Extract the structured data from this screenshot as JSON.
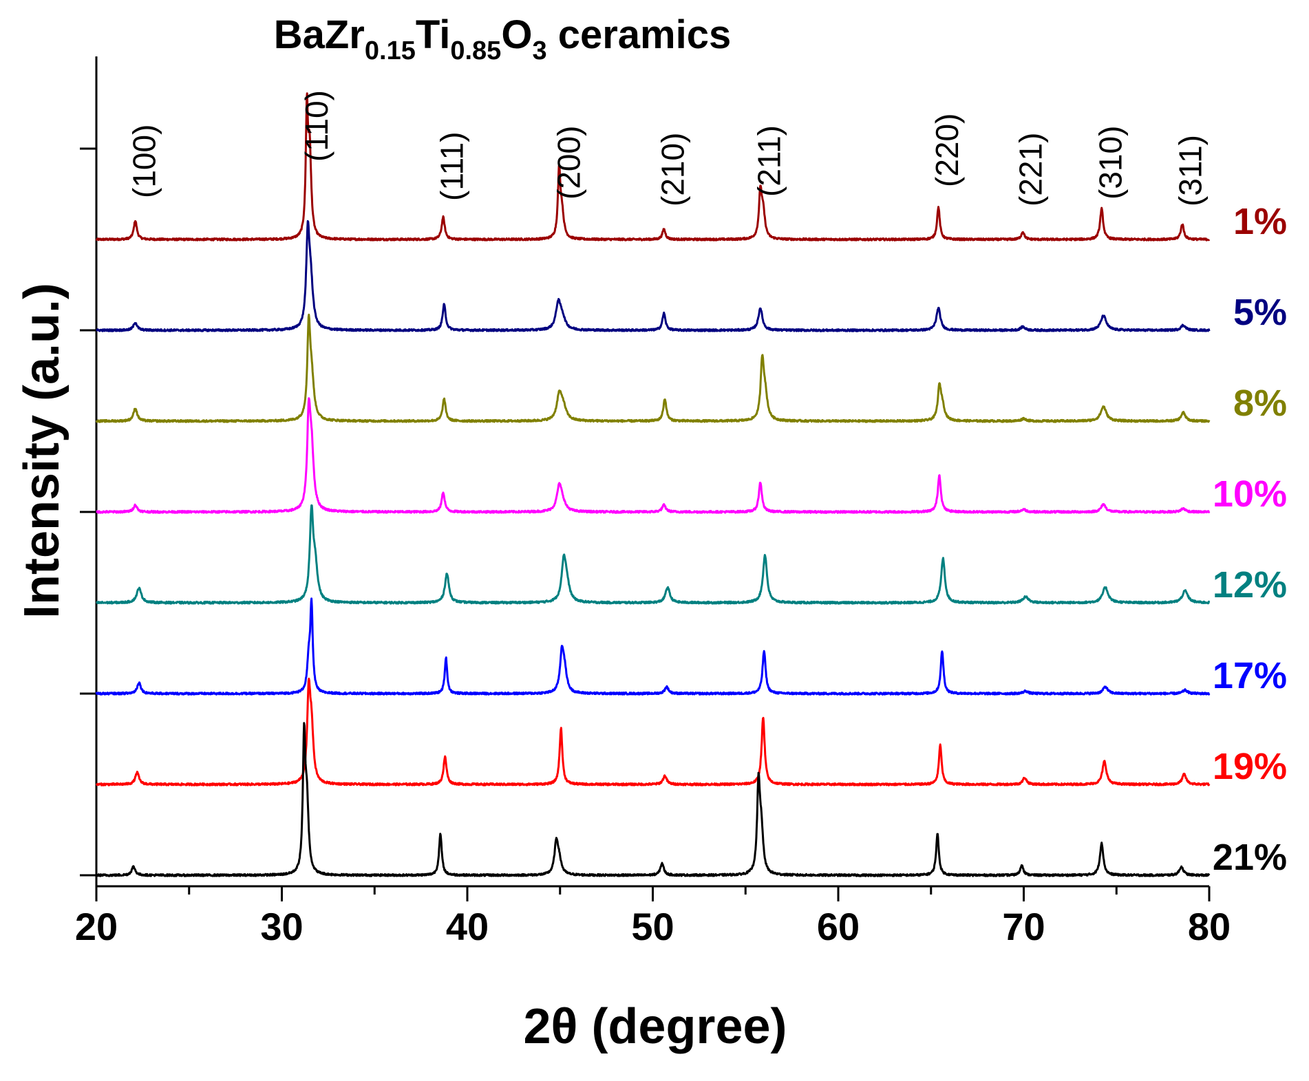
{
  "chart_data": {
    "type": "line",
    "title_main": "BaZr",
    "title_sub1": "0.15",
    "title_mid": "Ti",
    "title_sub2": "0.85",
    "title_o": "O",
    "title_sub3": "3",
    "title_end": " ceramics",
    "xlabel": "2θ (degree)",
    "ylabel": "Intensity (a.u.)",
    "xlim": [
      20,
      80
    ],
    "xticks": [
      20,
      30,
      40,
      50,
      60,
      70,
      80
    ],
    "xtick_labels": [
      "20",
      "30",
      "40",
      "50",
      "60",
      "70",
      "80"
    ],
    "peak_labels": [
      {
        "text": "(100)",
        "x": 22.2
      },
      {
        "text": "(110)",
        "x": 31.5
      },
      {
        "text": "(111)",
        "x": 38.8
      },
      {
        "text": "(200)",
        "x": 45.1
      },
      {
        "text": "(210)",
        "x": 50.7
      },
      {
        "text": "(211)",
        "x": 55.9
      },
      {
        "text": "(220)",
        "x": 65.5
      },
      {
        "text": "(221)",
        "x": 70.0
      },
      {
        "text": "(310)",
        "x": 74.3
      },
      {
        "text": "(311)",
        "x": 78.6
      }
    ],
    "series": [
      {
        "name": "1%",
        "color": "#9B0000",
        "peaks": [
          [
            22.1,
            22
          ],
          [
            31.35,
            140
          ],
          [
            31.5,
            100
          ],
          [
            38.7,
            26
          ],
          [
            44.95,
            76
          ],
          [
            45.1,
            30
          ],
          [
            50.6,
            12
          ],
          [
            55.8,
            52
          ],
          [
            55.95,
            30
          ],
          [
            65.4,
            38
          ],
          [
            69.95,
            9
          ],
          [
            74.2,
            36
          ],
          [
            78.55,
            18
          ]
        ],
        "widths": [
          0.1,
          0.07,
          0.1,
          0.1,
          0.08,
          0.12,
          0.1,
          0.09,
          0.12,
          0.09,
          0.1,
          0.1,
          0.1
        ]
      },
      {
        "name": "5%",
        "color": "#000080",
        "peaks": [
          [
            22.1,
            9
          ],
          [
            31.4,
            100
          ],
          [
            31.55,
            55
          ],
          [
            38.75,
            30
          ],
          [
            44.9,
            28
          ],
          [
            45.1,
            15
          ],
          [
            50.6,
            20
          ],
          [
            55.8,
            26
          ],
          [
            65.4,
            26
          ],
          [
            69.95,
            4
          ],
          [
            74.3,
            17
          ],
          [
            78.6,
            6
          ]
        ],
        "widths": [
          0.12,
          0.1,
          0.15,
          0.1,
          0.15,
          0.2,
          0.1,
          0.13,
          0.13,
          0.15,
          0.18,
          0.15
        ]
      },
      {
        "name": "8%",
        "color": "#808000",
        "peaks": [
          [
            22.1,
            15
          ],
          [
            31.45,
            100
          ],
          [
            31.6,
            50
          ],
          [
            38.75,
            26
          ],
          [
            44.95,
            26
          ],
          [
            45.15,
            18
          ],
          [
            50.65,
            26
          ],
          [
            55.9,
            63
          ],
          [
            56.05,
            30
          ],
          [
            65.45,
            35
          ],
          [
            65.6,
            18
          ],
          [
            70.0,
            3
          ],
          [
            74.3,
            17
          ],
          [
            78.6,
            10
          ]
        ],
        "widths": [
          0.12,
          0.09,
          0.15,
          0.1,
          0.15,
          0.2,
          0.1,
          0.1,
          0.15,
          0.1,
          0.15,
          0.15,
          0.18,
          0.14
        ]
      },
      {
        "name": "10%",
        "color": "#FF00FF",
        "peaks": [
          [
            22.1,
            8
          ],
          [
            31.45,
            100
          ],
          [
            31.6,
            70
          ],
          [
            38.7,
            23
          ],
          [
            44.95,
            25
          ],
          [
            45.1,
            12
          ],
          [
            50.6,
            8
          ],
          [
            55.8,
            35
          ],
          [
            65.45,
            43
          ],
          [
            70.0,
            3
          ],
          [
            74.3,
            9
          ],
          [
            78.6,
            4
          ]
        ],
        "widths": [
          0.12,
          0.1,
          0.14,
          0.1,
          0.15,
          0.2,
          0.12,
          0.1,
          0.1,
          0.15,
          0.15,
          0.15
        ]
      },
      {
        "name": "12%",
        "color": "#008080",
        "peaks": [
          [
            22.3,
            17
          ],
          [
            31.6,
            100
          ],
          [
            31.8,
            40
          ],
          [
            38.9,
            34
          ],
          [
            45.2,
            44
          ],
          [
            45.35,
            20
          ],
          [
            50.8,
            18
          ],
          [
            56.05,
            56
          ],
          [
            65.65,
            52
          ],
          [
            70.1,
            7
          ],
          [
            74.4,
            18
          ],
          [
            78.7,
            14
          ]
        ],
        "widths": [
          0.15,
          0.11,
          0.15,
          0.13,
          0.14,
          0.18,
          0.14,
          0.13,
          0.12,
          0.18,
          0.18,
          0.18
        ]
      },
      {
        "name": "17%",
        "color": "#0000FF",
        "peaks": [
          [
            22.3,
            13
          ],
          [
            31.6,
            100
          ],
          [
            31.45,
            35
          ],
          [
            38.85,
            42
          ],
          [
            45.1,
            46
          ],
          [
            45.25,
            22
          ],
          [
            50.75,
            8
          ],
          [
            56.0,
            50
          ],
          [
            65.6,
            50
          ],
          [
            70.1,
            3
          ],
          [
            74.4,
            8
          ],
          [
            78.7,
            4
          ]
        ],
        "widths": [
          0.12,
          0.08,
          0.1,
          0.08,
          0.12,
          0.14,
          0.12,
          0.1,
          0.09,
          0.15,
          0.15,
          0.15
        ]
      },
      {
        "name": "19%",
        "color": "#FF0000",
        "peaks": [
          [
            22.2,
            14
          ],
          [
            31.45,
            100
          ],
          [
            31.6,
            60
          ],
          [
            38.8,
            32
          ],
          [
            45.05,
            66
          ],
          [
            50.65,
            10
          ],
          [
            55.95,
            78
          ],
          [
            65.5,
            46
          ],
          [
            70.05,
            8
          ],
          [
            74.35,
            27
          ],
          [
            78.65,
            12
          ]
        ],
        "widths": [
          0.12,
          0.1,
          0.12,
          0.1,
          0.09,
          0.12,
          0.1,
          0.09,
          0.12,
          0.13,
          0.13
        ]
      },
      {
        "name": "21%",
        "color": "#000000",
        "peaks": [
          [
            22.0,
            10
          ],
          [
            31.2,
            150
          ],
          [
            31.35,
            80
          ],
          [
            38.55,
            48
          ],
          [
            44.8,
            36
          ],
          [
            44.95,
            15
          ],
          [
            50.5,
            14
          ],
          [
            55.7,
            100
          ],
          [
            55.85,
            50
          ],
          [
            65.35,
            48
          ],
          [
            69.9,
            12
          ],
          [
            74.2,
            38
          ],
          [
            78.5,
            10
          ]
        ],
        "widths": [
          0.12,
          0.08,
          0.11,
          0.09,
          0.12,
          0.15,
          0.11,
          0.09,
          0.12,
          0.09,
          0.1,
          0.11,
          0.13
        ]
      }
    ]
  }
}
